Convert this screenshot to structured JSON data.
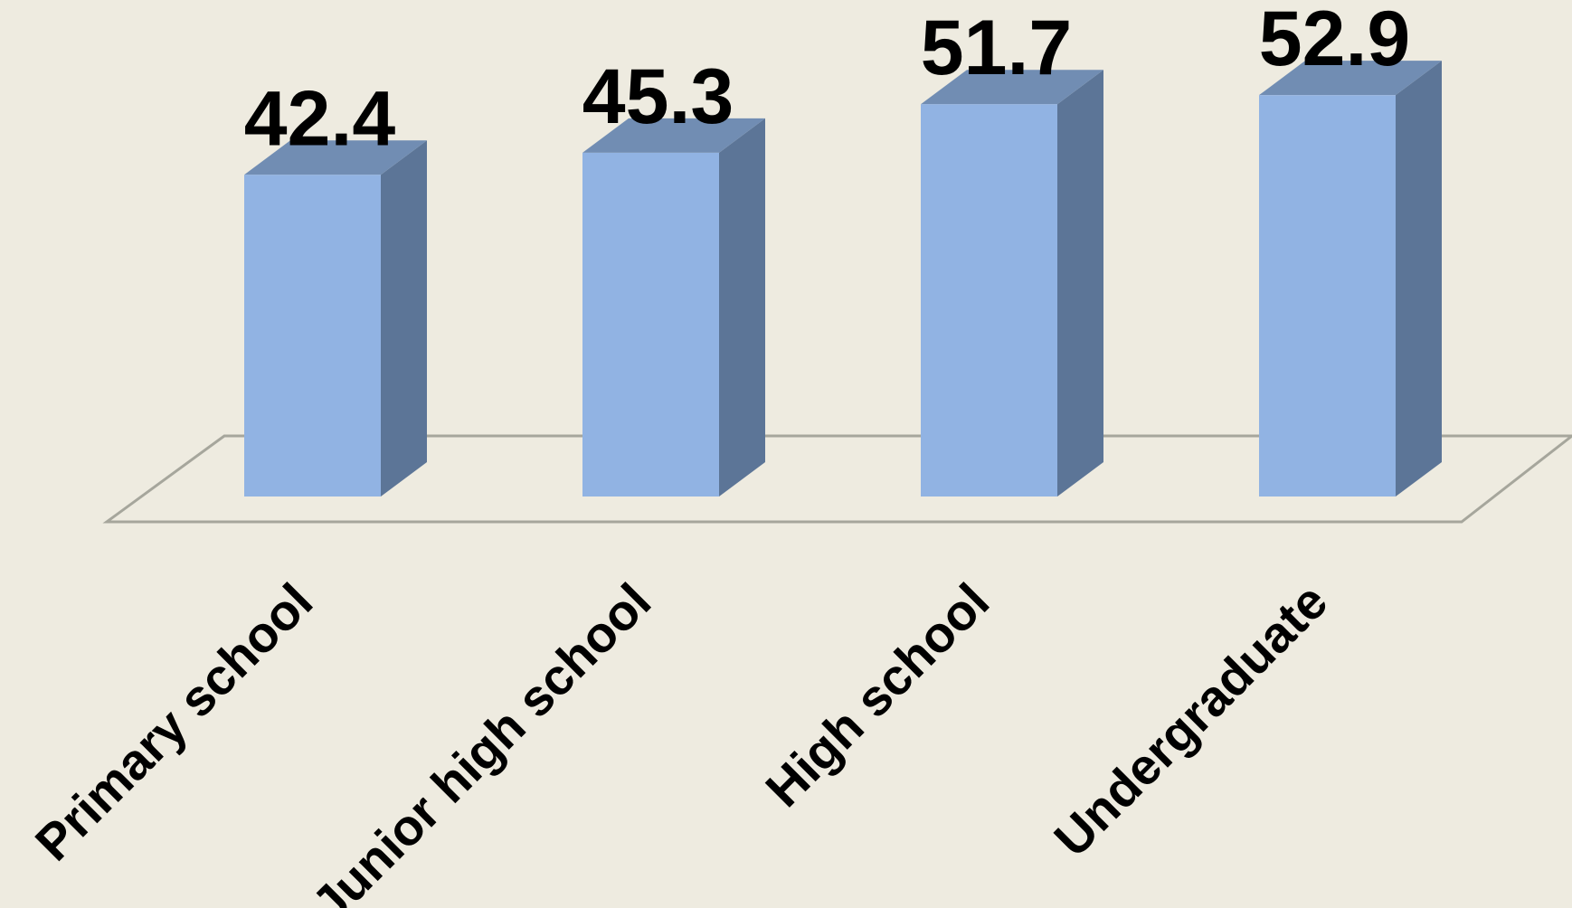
{
  "chart_data": {
    "type": "bar",
    "style": "3d-column",
    "categories": [
      "Primary school",
      "Junior high school",
      "High school",
      "Undergraduate"
    ],
    "values": [
      42.4,
      45.3,
      51.7,
      52.9
    ],
    "data_labels": [
      "42.4",
      "45.3",
      "51.7",
      "52.9"
    ],
    "title": "",
    "xlabel": "",
    "ylabel": "",
    "ylim": [
      0,
      60
    ],
    "grid": false,
    "legend": "none",
    "colors": {
      "background": "#EEEBE0",
      "bar_front": "#91B3E3",
      "bar_side": "#5C7597",
      "bar_top": "#718DB3",
      "floor_line": "#A6A69C",
      "text": "#000000"
    }
  }
}
